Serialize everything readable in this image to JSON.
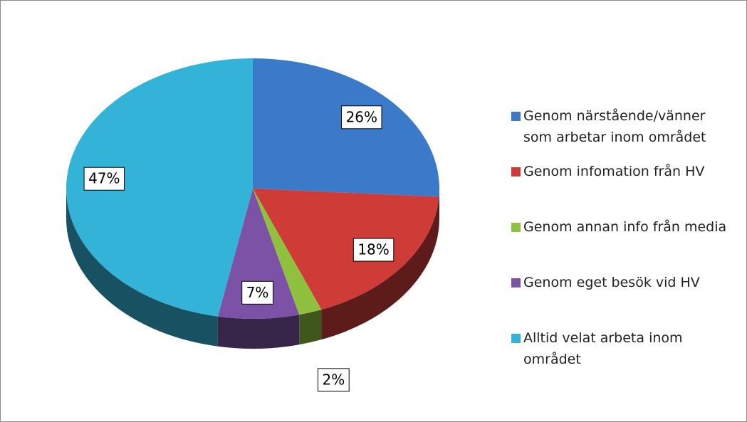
{
  "chart_data": {
    "type": "pie",
    "categories": [
      "Genom närstående/vänner som arbetar inom området",
      "Genom infomation från HV",
      "Genom annan info från media",
      "Genom eget besök vid HV",
      "Alltid velat arbeta inom området"
    ],
    "values": [
      26,
      18,
      2,
      7,
      47
    ],
    "value_labels": [
      "26%",
      "18%",
      "2%",
      "7%",
      "47%"
    ],
    "colors": [
      "#3b79c9",
      "#cf3b37",
      "#8fc13f",
      "#7b52a5",
      "#34b3d9"
    ],
    "legend": "right"
  }
}
